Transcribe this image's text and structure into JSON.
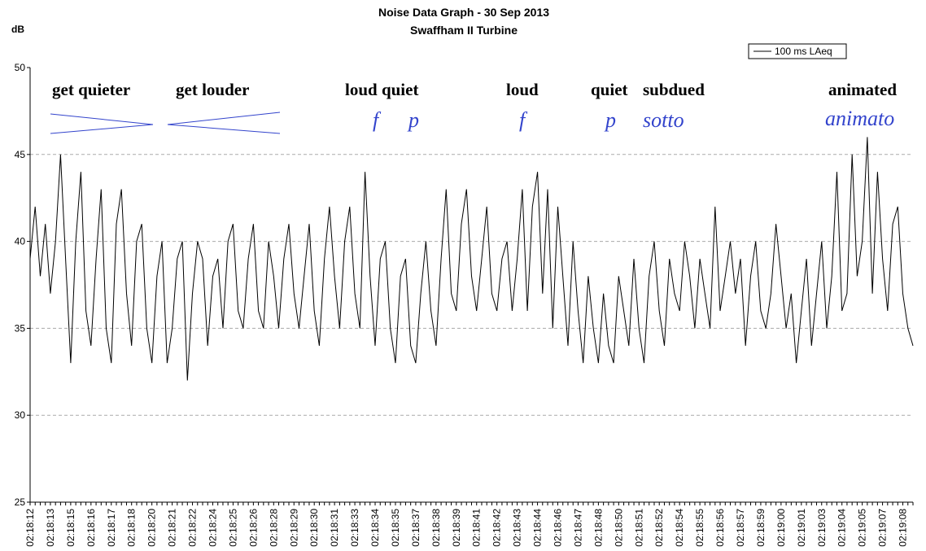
{
  "chart_data": {
    "type": "line",
    "title": "Noise Data Graph - 30 Sep 2013",
    "subtitle": "Swaffham II Turbine",
    "y_label": "dB",
    "ylim": [
      25,
      50
    ],
    "yticks": [
      25,
      30,
      35,
      40,
      45,
      50
    ],
    "grid": true,
    "legend": "upper right",
    "annotations": [
      "get quieter",
      "get louder",
      "loud quiet",
      "loud",
      "quiet",
      "subdued",
      "animated",
      "f",
      "p",
      "f",
      "p",
      "sotto",
      "animato"
    ],
    "categories": [
      "02:18:12",
      null,
      null,
      null,
      "02:18:13",
      null,
      null,
      null,
      "02:18:15",
      null,
      null,
      null,
      "02:18:16",
      null,
      null,
      null,
      "02:18:17",
      null,
      null,
      null,
      "02:18:18",
      null,
      null,
      null,
      "02:18:20",
      null,
      null,
      null,
      "02:18:21",
      null,
      null,
      null,
      "02:18:22",
      null,
      null,
      null,
      "02:18:24",
      null,
      null,
      null,
      "02:18:25",
      null,
      null,
      null,
      "02:18:26",
      null,
      null,
      null,
      "02:18:28",
      null,
      null,
      null,
      "02:18:29",
      null,
      null,
      null,
      "02:18:30",
      null,
      null,
      null,
      "02:18:31",
      null,
      null,
      null,
      "02:18:33",
      null,
      null,
      null,
      "02:18:34",
      null,
      null,
      null,
      "02:18:35",
      null,
      null,
      null,
      "02:18:37",
      null,
      null,
      null,
      "02:18:38",
      null,
      null,
      null,
      "02:18:39",
      null,
      null,
      null,
      "02:18:41",
      null,
      null,
      null,
      "02:18:42",
      null,
      null,
      null,
      "02:18:43",
      null,
      null,
      null,
      "02:18:44",
      null,
      null,
      null,
      "02:18:46",
      null,
      null,
      null,
      "02:18:47",
      null,
      null,
      null,
      "02:18:48",
      null,
      null,
      null,
      "02:18:50",
      null,
      null,
      null,
      "02:18:51",
      null,
      null,
      null,
      "02:18:52",
      null,
      null,
      null,
      "02:18:54",
      null,
      null,
      null,
      "02:18:55",
      null,
      null,
      null,
      "02:18:56",
      null,
      null,
      null,
      "02:18:57",
      null,
      null,
      null,
      "02:18:59",
      null,
      null,
      null,
      "02:19:00",
      null,
      null,
      null,
      "02:19:01",
      null,
      null,
      null,
      "02:19:03",
      null,
      null,
      null,
      "02:19:04",
      null,
      null,
      null,
      "02:19:05",
      null,
      null,
      null,
      "02:19:07",
      null,
      null,
      null,
      "02:19:08",
      null,
      null
    ],
    "series": [
      {
        "name": "100 ms LAeq",
        "color": "#000000",
        "values": [
          39,
          42,
          38,
          41,
          37,
          40,
          45,
          39,
          33,
          40,
          44,
          36,
          34,
          39,
          43,
          35,
          33,
          41,
          43,
          37,
          34,
          40,
          41,
          35,
          33,
          38,
          40,
          33,
          35,
          39,
          40,
          32,
          37,
          40,
          39,
          34,
          38,
          39,
          35,
          40,
          41,
          36,
          35,
          39,
          41,
          36,
          35,
          40,
          38,
          35,
          39,
          41,
          37,
          35,
          38,
          41,
          36,
          34,
          39,
          42,
          38,
          35,
          40,
          42,
          37,
          35,
          44,
          38,
          34,
          39,
          40,
          35,
          33,
          38,
          39,
          34,
          33,
          37,
          40,
          36,
          34,
          39,
          43,
          37,
          36,
          41,
          43,
          38,
          36,
          39,
          42,
          37,
          36,
          39,
          40,
          36,
          39,
          43,
          36,
          42,
          44,
          37,
          43,
          35,
          42,
          38,
          34,
          40,
          36,
          33,
          38,
          35,
          33,
          37,
          34,
          33,
          38,
          36,
          34,
          39,
          35,
          33,
          38,
          40,
          36,
          34,
          39,
          37,
          36,
          40,
          38,
          35,
          39,
          37,
          35,
          42,
          36,
          38,
          40,
          37,
          39,
          34,
          38,
          40,
          36,
          35,
          37,
          41,
          38,
          35,
          37,
          33,
          36,
          39,
          34,
          37,
          40,
          35,
          38,
          44,
          36,
          37,
          45,
          38,
          40,
          46,
          37,
          44,
          39,
          36,
          41,
          42,
          37,
          35,
          34
        ]
      }
    ]
  }
}
